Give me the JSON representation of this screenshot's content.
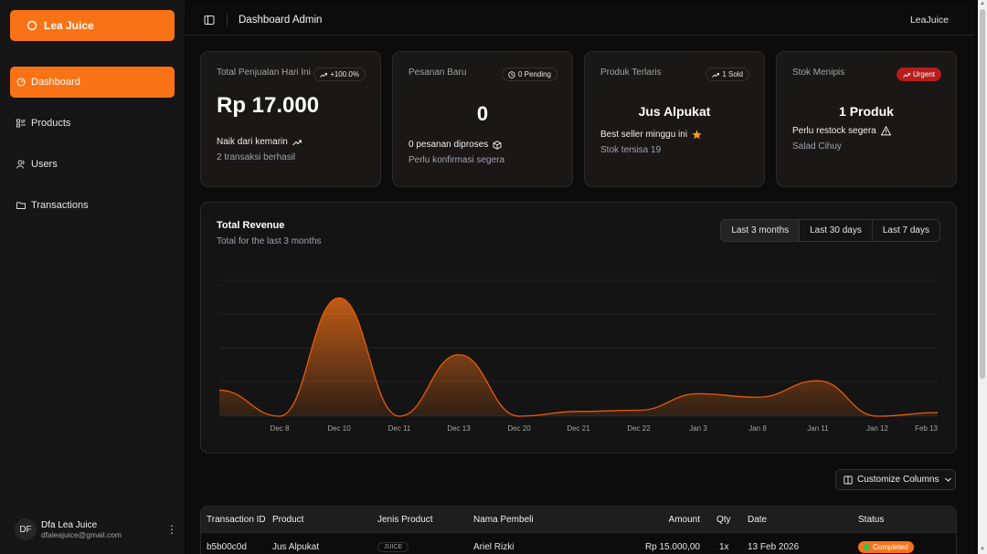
{
  "app": {
    "brand": "Lea Juice"
  },
  "sidebar": {
    "items": [
      {
        "label": "Dashboard",
        "icon": "gauge-icon"
      },
      {
        "label": "Products",
        "icon": "list-icon"
      },
      {
        "label": "Users",
        "icon": "users-icon"
      },
      {
        "label": "Transactions",
        "icon": "folder-icon"
      }
    ],
    "user": {
      "initials": "DF",
      "name": "Dfa Lea Juice",
      "email": "dfaleajuice@gmail.com"
    }
  },
  "header": {
    "title": "Dashboard Admin",
    "right": "LeaJuice"
  },
  "cards": [
    {
      "label": "Total Penjualan Hari Ini",
      "badge": "+100.0%",
      "value": "Rp 17.000",
      "line1": "Naik dari kemarin",
      "line2": "2 transaksi berhasil"
    },
    {
      "label": "Pesanan Baru",
      "badge": "0 Pending",
      "value": "0",
      "line1": "0 pesanan diproses",
      "line2": "Perlu konfirmasi segera"
    },
    {
      "label": "Produk Terlaris",
      "badge": "1 Sold",
      "value": "Jus Alpukat",
      "line1": "Best seller minggu ini",
      "line2": "Stok tersisa 19"
    },
    {
      "label": "Stok Menipis",
      "badge": "Urgent",
      "value": "1 Produk",
      "line1": "Perlu restock segera",
      "line2": "Salad Cihuy"
    }
  ],
  "colors": {
    "accent": "#f97316",
    "urgent": "#b91c1c",
    "completed_dot": "#22c55e"
  },
  "revenue": {
    "title": "Total Revenue",
    "subtitle": "Total for the last 3 months",
    "ranges": [
      "Last 3 months",
      "Last 30 days",
      "Last 7 days"
    ],
    "selected_range": "Last 3 months"
  },
  "chart_data": {
    "type": "area",
    "x": [
      "Dec 8",
      "Dec 10",
      "Dec 11",
      "Dec 13",
      "Dec 20",
      "Dec 21",
      "Dec 22",
      "Jan 3",
      "Jan 8",
      "Jan 11",
      "Jan 12",
      "Feb 13"
    ],
    "values": [
      0,
      100,
      0,
      52,
      0,
      4,
      5,
      19,
      16,
      30,
      0,
      3
    ],
    "start_value": 22,
    "ylim": [
      0,
      115
    ],
    "grid": true,
    "title": "",
    "xlabel": "",
    "ylabel": ""
  },
  "table": {
    "customize_label": "Customize Columns",
    "columns": [
      "Transaction ID",
      "Product",
      "Jenis Product",
      "Nama Pembeli",
      "Amount",
      "Qty",
      "Date",
      "Status"
    ],
    "rows": [
      {
        "id": "b5b00c0d",
        "product": "Jus Alpukat",
        "jenis": "JUICE",
        "pembeli": "Ariel Rizki",
        "amount": "Rp 15.000,00",
        "qty": "1x",
        "date": "13 Feb 2026",
        "status": "Completed"
      }
    ]
  }
}
